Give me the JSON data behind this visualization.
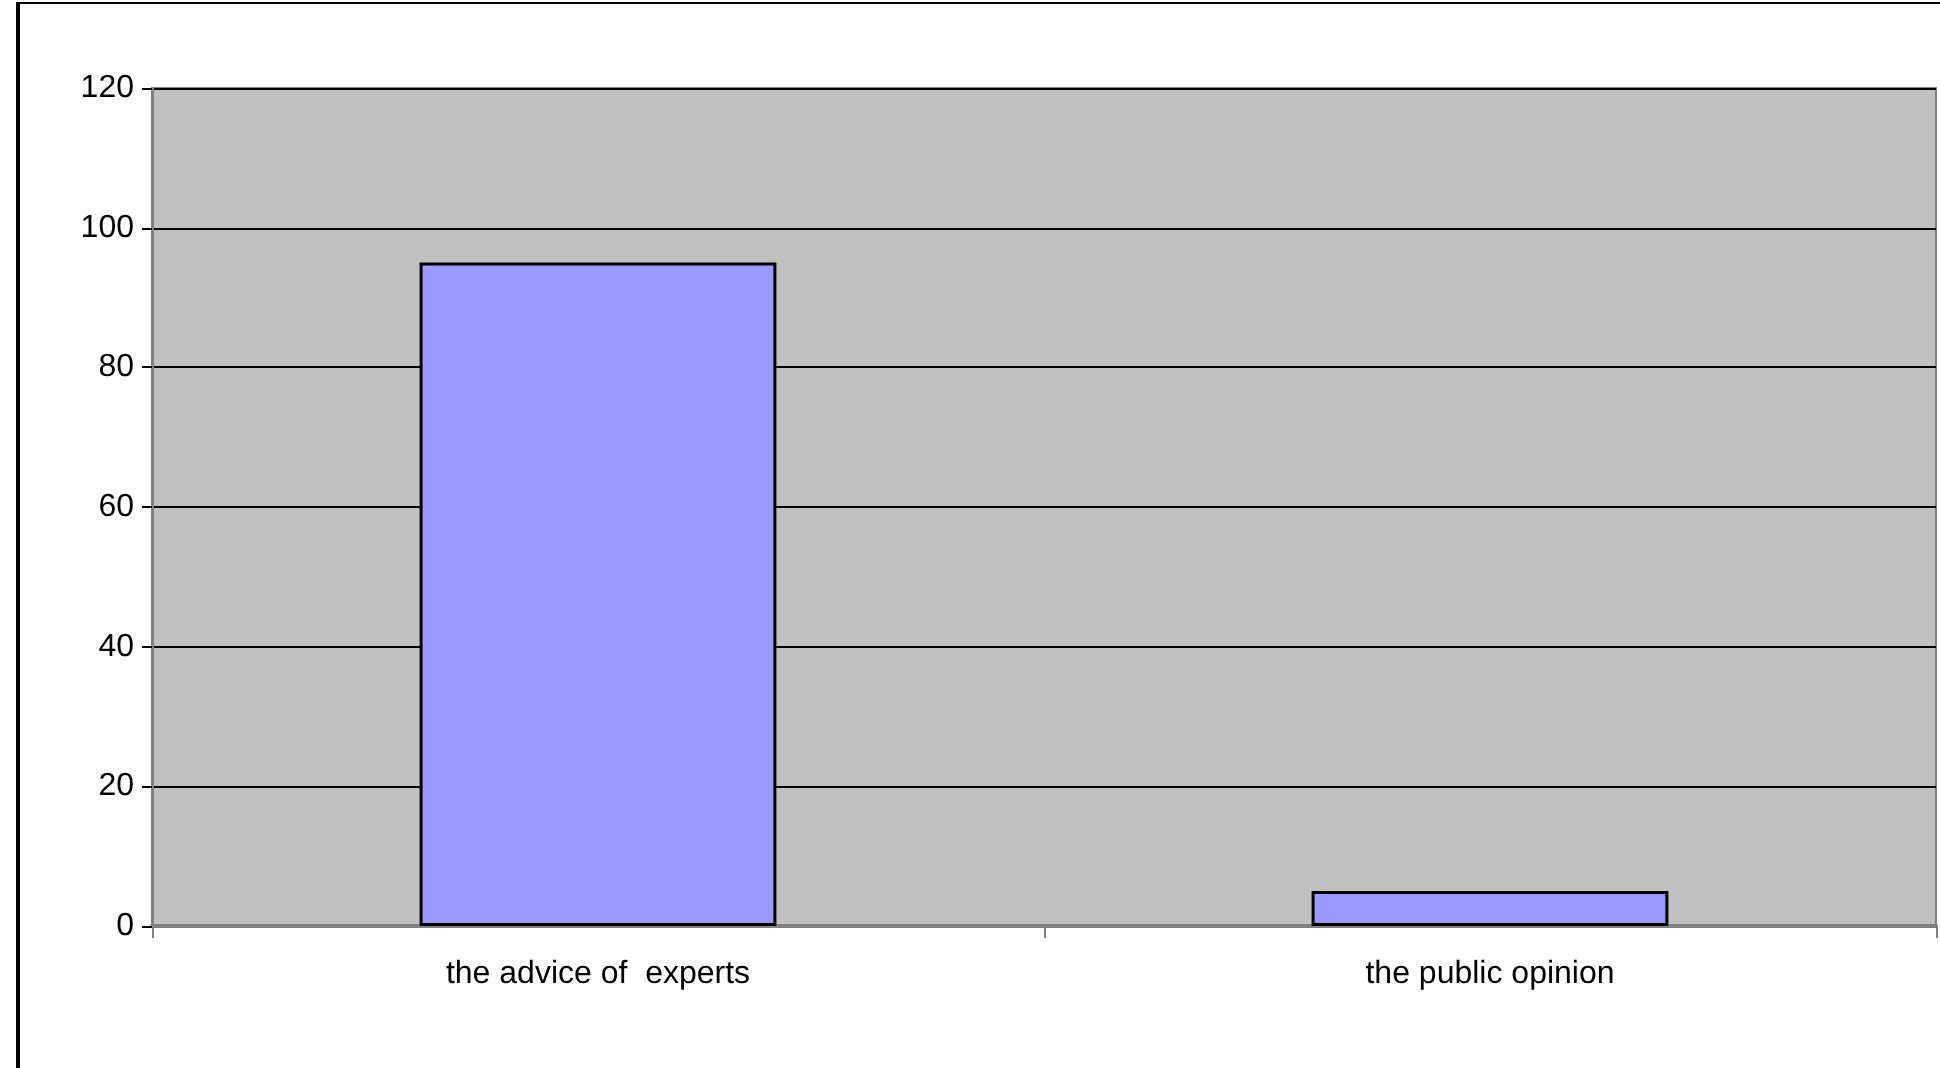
{
  "chart_data": {
    "type": "bar",
    "categories": [
      "the advice of  experts",
      "the public opinion"
    ],
    "values": [
      95,
      5
    ],
    "color": "#9999ff",
    "ylim": [
      0,
      120
    ],
    "yticks": [
      0,
      20,
      40,
      60,
      80,
      100,
      120
    ],
    "grid": "y"
  }
}
